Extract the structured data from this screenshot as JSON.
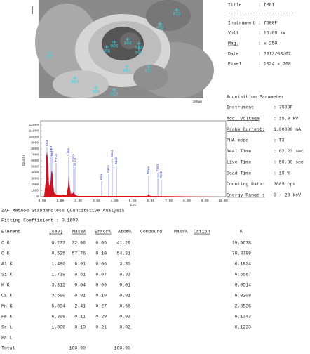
{
  "sem_image": {
    "point_labels": [
      "013",
      "012",
      "004",
      "005",
      "003",
      "002",
      "006",
      "007",
      "008",
      "009",
      "010",
      "001",
      "011"
    ],
    "scale_bar": "100µm"
  },
  "info": {
    "separator": "------------------------",
    "rows": [
      [
        "Title",
        ": IMG1"
      ],
      [
        "Instrument",
        ": 7500F"
      ],
      [
        "Volt",
        ": 15.00 kV"
      ],
      [
        "Mag.",
        ": x 250"
      ],
      [
        "Date",
        ": 2013/03/07"
      ],
      [
        "Pixel",
        ": 1024 x 768"
      ]
    ]
  },
  "acquisition": {
    "heading": "Acquisition Parameter",
    "rows": [
      [
        "Instrument",
        ": 7500F"
      ],
      [
        "Acc. Voltage",
        ": 15.0 kV"
      ],
      [
        "Probe Current:",
        "1.00000 nA"
      ],
      [
        "PHA mode",
        ": T3"
      ],
      [
        "Real Time",
        ": 62.23 sec"
      ],
      [
        "Live Time",
        ": 50.00 sec"
      ],
      [
        "Dead Time",
        ": 19 %"
      ],
      [
        "Counting Rate:",
        "3865 cps"
      ],
      [
        "Energy Range :",
        "0 - 20 keV"
      ]
    ]
  },
  "spectrum": {
    "y_label": "Counts",
    "x_label": "keV",
    "yticks": [
      "0",
      "1000",
      "2000",
      "3000",
      "4000",
      "5000",
      "6000",
      "7000",
      "8000",
      "9000",
      "10000",
      "11000",
      "12000"
    ],
    "xticks": [
      "0.00",
      "1.00",
      "2.00",
      "3.00",
      "4.00",
      "5.00",
      "6.00",
      "7.00",
      "8.00",
      "9.00",
      "10.00"
    ],
    "peak_labels": [
      "CKa",
      "OKa",
      "MnLl",
      "FeLa",
      "AlKa",
      "SiKa",
      "SrLa",
      "KKa",
      "CaKa",
      "BaLa",
      "BaLb",
      "MnKa",
      "FeKa",
      "MnKb"
    ]
  },
  "table": {
    "title": "ZAF Method Standardless Quantitative Analysis",
    "fitting": "Fitting Coefficient : 0.1608",
    "headers": [
      "Element",
      "(keV)",
      "Mass%",
      "Error%",
      "Atom%",
      "Compound",
      "Mass%",
      "Cation",
      "K"
    ],
    "rows": [
      {
        "element": "C K",
        "kev": "0.277",
        "mass": "32.96",
        "error": "0.05",
        "atom": "41.29",
        "k": "19.0678"
      },
      {
        "element": "O K",
        "kev": "0.525",
        "mass": "57.76",
        "error": "0.10",
        "atom": "54.31",
        "k": "70.8788"
      },
      {
        "element": "Al K",
        "kev": "1.486",
        "mass": "6.01",
        "error": "0.06",
        "atom": "3.35",
        "k": "6.1834"
      },
      {
        "element": "Si K",
        "kev": "1.739",
        "mass": "0.61",
        "error": "0.07",
        "atom": "0.33",
        "k": "0.6567"
      },
      {
        "element": "K K",
        "kev": "3.312",
        "mass": "0.04",
        "error": "0.09",
        "atom": "0.01",
        "k": "0.0514"
      },
      {
        "element": "Ca K",
        "kev": "3.690",
        "mass": "0.01",
        "error": "0.10",
        "atom": "0.01",
        "k": "0.0208"
      },
      {
        "element": "Mn K",
        "kev": "5.894",
        "mass": "2.41",
        "error": "0.27",
        "atom": "0.66",
        "k": "2.8536"
      },
      {
        "element": "Fe K",
        "kev": "6.398",
        "mass": "0.11",
        "error": "0.29",
        "atom": "0.03",
        "k": "0.1343"
      },
      {
        "element": "Sr L",
        "kev": "1.806",
        "mass": "0.10",
        "error": "0.21",
        "atom": "0.02",
        "k": "0.1233"
      },
      {
        "element": "Ba L"
      }
    ],
    "total": {
      "label": "Total",
      "mass": "100.00",
      "atom": "100.00"
    }
  }
}
